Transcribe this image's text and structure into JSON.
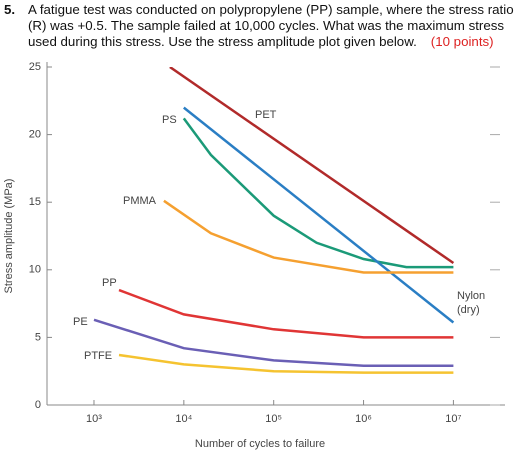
{
  "question": {
    "number": "5.",
    "text": "A fatigue test was conducted on polypropylene (PP) sample, where the stress ratio (R) was +0.5. The sample failed at 10,000 cycles. What was the maximum stress used during this stress. Use the stress amplitude plot given below.",
    "points": "(10 points)"
  },
  "chart_data": {
    "type": "line",
    "x_label": "Number of cycles to failure",
    "y_label": "Stress amplitude (MPa)",
    "xscale": "log",
    "xlim": [
      300,
      33000000
    ],
    "xticks": [
      {
        "value": 1000,
        "label": "10³"
      },
      {
        "value": 10000,
        "label": "10⁴"
      },
      {
        "value": 100000,
        "label": "10⁵"
      },
      {
        "value": 1000000,
        "label": "10⁶"
      },
      {
        "value": 10000000,
        "label": "10⁷"
      }
    ],
    "ylim": [
      0,
      25
    ],
    "yticks": [
      0,
      5,
      10,
      15,
      20,
      25
    ],
    "grid": false,
    "series": [
      {
        "name": "PET",
        "color": "#b12a2a",
        "x": [
          7000,
          10000000
        ],
        "values": [
          25,
          10.5
        ]
      },
      {
        "name": "PS",
        "color": "#1b9a78",
        "x": [
          10000,
          20000,
          100000,
          300000,
          1000000,
          3000000,
          10000000
        ],
        "values": [
          21.2,
          18.5,
          14,
          12,
          10.8,
          10.2,
          10.2
        ]
      },
      {
        "name": "Nylon (dry)",
        "color": "#2a7ec4",
        "x": [
          10000,
          10000000
        ],
        "values": [
          22,
          6.1
        ]
      },
      {
        "name": "PMMA",
        "color": "#f5a030",
        "x": [
          6000,
          20000,
          100000,
          1000000,
          10000000
        ],
        "values": [
          15.1,
          12.7,
          10.9,
          9.8,
          9.8
        ]
      },
      {
        "name": "PP",
        "color": "#e03535",
        "x": [
          1900,
          10000,
          100000,
          1000000,
          10000000
        ],
        "values": [
          8.5,
          6.7,
          5.6,
          5,
          5
        ]
      },
      {
        "name": "PE",
        "color": "#6a5fb5",
        "x": [
          1000,
          10000,
          100000,
          1000000,
          10000000
        ],
        "values": [
          6.3,
          4.2,
          3.3,
          2.9,
          2.9
        ]
      },
      {
        "name": "PTFE",
        "color": "#f5c330",
        "x": [
          1900,
          10000,
          100000,
          1000000,
          10000000
        ],
        "values": [
          3.7,
          3,
          2.5,
          2.4,
          2.4
        ]
      }
    ]
  }
}
